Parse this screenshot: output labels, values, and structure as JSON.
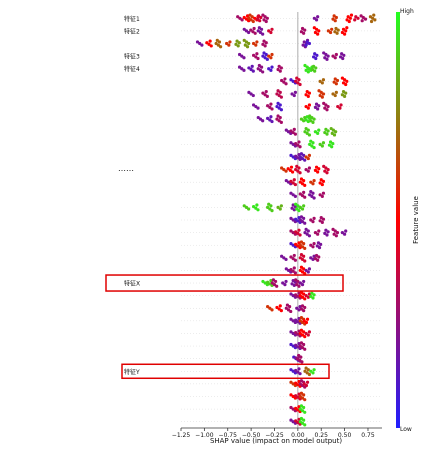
{
  "chart_data": {
    "type": "scatter",
    "subtype": "shap-beeswarm",
    "title": "",
    "xlabel": "SHAP value (impact on model output)",
    "ylabel": "",
    "xlim": [
      -1.25,
      0.9
    ],
    "x_ticks": [
      "−1.25",
      "−1.00",
      "−0.75",
      "−0.50",
      "−0.25",
      "0.00",
      "0.25",
      "0.50",
      "0.75"
    ],
    "x_tick_values": [
      -1.25,
      -1.0,
      -0.75,
      -0.5,
      -0.25,
      0.0,
      0.25,
      0.5,
      0.75
    ],
    "feature_labels": [
      "特征1",
      "特征2",
      "特征3",
      "特征4",
      "特征X",
      "特征Y"
    ],
    "ellipsis_label": "……",
    "colorbar": {
      "label": "Feature value",
      "high": "High",
      "low": "Low",
      "colors": [
        "#1f1fff",
        "#ff0000",
        "#22ff22"
      ]
    },
    "annotation_color": "#e00000",
    "features": [
      {
        "name": "特征1",
        "points": [
          [
            -0.62,
            0.3
          ],
          [
            -0.55,
            0.5
          ],
          [
            -0.5,
            0.6
          ],
          [
            -0.45,
            0.5
          ],
          [
            -0.42,
            0.4
          ],
          [
            -0.35,
            0.3
          ],
          [
            0.2,
            0.2
          ],
          [
            0.4,
            0.6
          ],
          [
            0.55,
            0.5
          ],
          [
            0.62,
            0.4
          ],
          [
            0.7,
            0.3
          ],
          [
            0.8,
            0.7
          ]
        ],
        "width": 0.06
      },
      {
        "name": "特征2",
        "points": [
          [
            -0.55,
            0.2
          ],
          [
            -0.48,
            0.3
          ],
          [
            -0.4,
            0.2
          ],
          [
            -0.3,
            0.4
          ],
          [
            0.05,
            0.3
          ],
          [
            0.2,
            0.5
          ],
          [
            0.35,
            0.6
          ],
          [
            0.42,
            0.7
          ],
          [
            0.5,
            0.5
          ]
        ],
        "width": 0.05
      },
      {
        "name": "",
        "points": [
          [
            -1.05,
            0.2
          ],
          [
            -0.95,
            0.5
          ],
          [
            -0.85,
            0.7
          ],
          [
            -0.75,
            0.6
          ],
          [
            -0.65,
            0.8
          ],
          [
            -0.55,
            0.8
          ],
          [
            -0.45,
            0.6
          ],
          [
            -0.35,
            0.3
          ],
          [
            0.08,
            0.2
          ],
          [
            0.1,
            0.1
          ]
        ],
        "width": 0.04
      },
      {
        "name": "特征3",
        "points": [
          [
            -0.6,
            0.2
          ],
          [
            -0.45,
            0.3
          ],
          [
            -0.35,
            0.1
          ],
          [
            -0.3,
            0.6
          ],
          [
            0.18,
            0.1
          ],
          [
            0.3,
            0.2
          ],
          [
            0.4,
            0.3
          ],
          [
            0.48,
            0.2
          ]
        ],
        "width": 0.04
      },
      {
        "name": "特征4",
        "points": [
          [
            -0.6,
            0.2
          ],
          [
            -0.5,
            0.15
          ],
          [
            -0.4,
            0.25
          ],
          [
            -0.3,
            0.1
          ],
          [
            -0.2,
            0.3
          ],
          [
            0.1,
            0.95
          ],
          [
            0.14,
            0.95
          ],
          [
            0.18,
            0.9
          ]
        ],
        "width": 0.06
      },
      {
        "name": "",
        "points": [
          [
            -0.05,
            0.1
          ],
          [
            -0.15,
            0.3
          ],
          [
            0.0,
            0.4
          ],
          [
            0.25,
            0.7
          ],
          [
            0.4,
            0.6
          ],
          [
            0.5,
            0.5
          ]
        ],
        "width": 0.04
      },
      {
        "name": "",
        "points": [
          [
            -0.5,
            0.2
          ],
          [
            -0.35,
            0.3
          ],
          [
            -0.2,
            0.35
          ],
          [
            -0.05,
            0.2
          ],
          [
            0.1,
            0.5
          ],
          [
            0.25,
            0.6
          ],
          [
            0.4,
            0.7
          ],
          [
            0.5,
            0.8
          ]
        ],
        "width": 0.06
      },
      {
        "name": "",
        "points": [
          [
            -0.45,
            0.2
          ],
          [
            -0.3,
            0.3
          ],
          [
            -0.2,
            0.1
          ],
          [
            0.1,
            0.5
          ],
          [
            0.2,
            0.2
          ],
          [
            0.3,
            0.3
          ],
          [
            0.45,
            0.4
          ]
        ],
        "width": 0.05
      },
      {
        "name": "",
        "points": [
          [
            -0.4,
            0.2
          ],
          [
            -0.3,
            0.15
          ],
          [
            -0.2,
            0.3
          ],
          [
            0.05,
            0.9
          ],
          [
            0.1,
            0.95
          ],
          [
            0.15,
            0.9
          ]
        ],
        "width": 0.05
      },
      {
        "name": "",
        "points": [
          [
            -0.1,
            0.2
          ],
          [
            -0.05,
            0.3
          ],
          [
            0.1,
            0.9
          ],
          [
            0.2,
            0.95
          ],
          [
            0.3,
            0.9
          ],
          [
            0.38,
            0.85
          ]
        ],
        "width": 0.04
      },
      {
        "name": "",
        "points": [
          [
            -0.05,
            0.2
          ],
          [
            0.0,
            0.3
          ],
          [
            0.15,
            0.95
          ],
          [
            0.25,
            0.9
          ],
          [
            0.35,
            0.95
          ]
        ],
        "width": 0.04
      },
      {
        "name": "",
        "points": [
          [
            -0.05,
            0.1
          ],
          [
            0.0,
            0.2
          ],
          [
            0.05,
            0.15
          ],
          [
            0.1,
            0.6
          ]
        ],
        "width": 0.04
      },
      {
        "name": "",
        "points": [
          [
            -0.15,
            0.6
          ],
          [
            -0.08,
            0.5
          ],
          [
            0.0,
            0.4
          ],
          [
            0.1,
            0.3
          ],
          [
            0.2,
            0.5
          ],
          [
            0.3,
            0.4
          ]
        ],
        "width": 0.05
      },
      {
        "name": "",
        "points": [
          [
            -0.1,
            0.2
          ],
          [
            -0.05,
            0.4
          ],
          [
            0.05,
            0.5
          ],
          [
            0.15,
            0.6
          ],
          [
            0.25,
            0.5
          ]
        ],
        "width": 0.04
      },
      {
        "name": "",
        "points": [
          [
            -0.05,
            0.2
          ],
          [
            0.05,
            0.3
          ],
          [
            0.15,
            0.2
          ],
          [
            0.25,
            0.3
          ]
        ],
        "width": 0.03
      },
      {
        "name": "",
        "points": [
          [
            -0.55,
            0.9
          ],
          [
            -0.45,
            0.95
          ],
          [
            -0.3,
            0.9
          ],
          [
            -0.2,
            0.85
          ],
          [
            -0.05,
            0.2
          ],
          [
            0.0,
            0.95
          ],
          [
            0.05,
            0.9
          ]
        ],
        "width": 0.05
      },
      {
        "name": "",
        "points": [
          [
            -0.05,
            0.2
          ],
          [
            0.0,
            0.1
          ],
          [
            0.05,
            0.2
          ],
          [
            0.15,
            0.3
          ],
          [
            0.25,
            0.3
          ]
        ],
        "width": 0.04
      },
      {
        "name": "",
        "points": [
          [
            -0.05,
            0.3
          ],
          [
            0.0,
            0.4
          ],
          [
            0.1,
            0.2
          ],
          [
            0.2,
            0.3
          ],
          [
            0.3,
            0.2
          ],
          [
            0.4,
            0.3
          ],
          [
            0.5,
            0.2
          ]
        ],
        "width": 0.04
      },
      {
        "name": "",
        "points": [
          [
            -0.05,
            0.1
          ],
          [
            0.0,
            0.5
          ],
          [
            0.05,
            0.6
          ],
          [
            0.15,
            0.3
          ],
          [
            0.22,
            0.2
          ]
        ],
        "width": 0.04
      },
      {
        "name": "",
        "points": [
          [
            -0.15,
            0.2
          ],
          [
            -0.05,
            0.3
          ],
          [
            0.05,
            0.4
          ],
          [
            0.15,
            0.2
          ],
          [
            0.2,
            0.3
          ]
        ],
        "width": 0.04
      },
      {
        "name": "",
        "points": [
          [
            -0.1,
            0.2
          ],
          [
            -0.05,
            0.3
          ],
          [
            0.05,
            0.5
          ],
          [
            0.1,
            0.2
          ]
        ],
        "width": 0.03
      },
      {
        "name": "特征X",
        "points": [
          [
            -0.35,
            0.95
          ],
          [
            -0.3,
            0.9
          ],
          [
            -0.25,
            0.3
          ],
          [
            -0.15,
            0.2
          ],
          [
            -0.05,
            0.2
          ],
          [
            0.0,
            0.3
          ],
          [
            0.05,
            0.2
          ]
        ],
        "width": 0.04
      },
      {
        "name": "",
        "points": [
          [
            -0.05,
            0.2
          ],
          [
            0.0,
            0.3
          ],
          [
            0.05,
            0.5
          ],
          [
            0.1,
            0.4
          ],
          [
            0.15,
            0.95
          ]
        ],
        "width": 0.03
      },
      {
        "name": "",
        "points": [
          [
            -0.3,
            0.6
          ],
          [
            -0.2,
            0.5
          ],
          [
            -0.1,
            0.3
          ],
          [
            0.0,
            0.2
          ],
          [
            0.05,
            0.3
          ]
        ],
        "width": 0.03
      },
      {
        "name": "",
        "points": [
          [
            -0.05,
            0.2
          ],
          [
            0.0,
            0.2
          ],
          [
            0.05,
            0.6
          ],
          [
            0.08,
            0.5
          ]
        ],
        "width": 0.03
      },
      {
        "name": "",
        "points": [
          [
            -0.05,
            0.2
          ],
          [
            0.0,
            0.3
          ],
          [
            0.05,
            0.5
          ],
          [
            0.1,
            0.4
          ]
        ],
        "width": 0.03
      },
      {
        "name": "",
        "points": [
          [
            -0.05,
            0.1
          ],
          [
            0.0,
            0.2
          ],
          [
            0.05,
            0.3
          ]
        ],
        "width": 0.03
      },
      {
        "name": "",
        "points": [
          [
            -0.02,
            0.1
          ],
          [
            0.0,
            0.2
          ],
          [
            0.02,
            0.3
          ]
        ],
        "width": 0.02
      },
      {
        "name": "特征Y",
        "points": [
          [
            -0.05,
            0.1
          ],
          [
            0.0,
            0.2
          ],
          [
            0.1,
            0.7
          ],
          [
            0.15,
            0.95
          ]
        ],
        "width": 0.02
      },
      {
        "name": "",
        "points": [
          [
            -0.05,
            0.6
          ],
          [
            0.0,
            0.5
          ],
          [
            0.05,
            0.3
          ],
          [
            0.08,
            0.4
          ]
        ],
        "width": 0.03
      },
      {
        "name": "",
        "points": [
          [
            -0.05,
            0.5
          ],
          [
            0.0,
            0.4
          ],
          [
            0.05,
            0.6
          ]
        ],
        "width": 0.03
      },
      {
        "name": "",
        "points": [
          [
            -0.05,
            0.3
          ],
          [
            0.0,
            0.5
          ],
          [
            0.05,
            0.95
          ]
        ],
        "width": 0.03
      },
      {
        "name": "",
        "points": [
          [
            -0.05,
            0.2
          ],
          [
            0.0,
            0.4
          ],
          [
            0.05,
            0.95
          ]
        ],
        "width": 0.03
      }
    ]
  }
}
